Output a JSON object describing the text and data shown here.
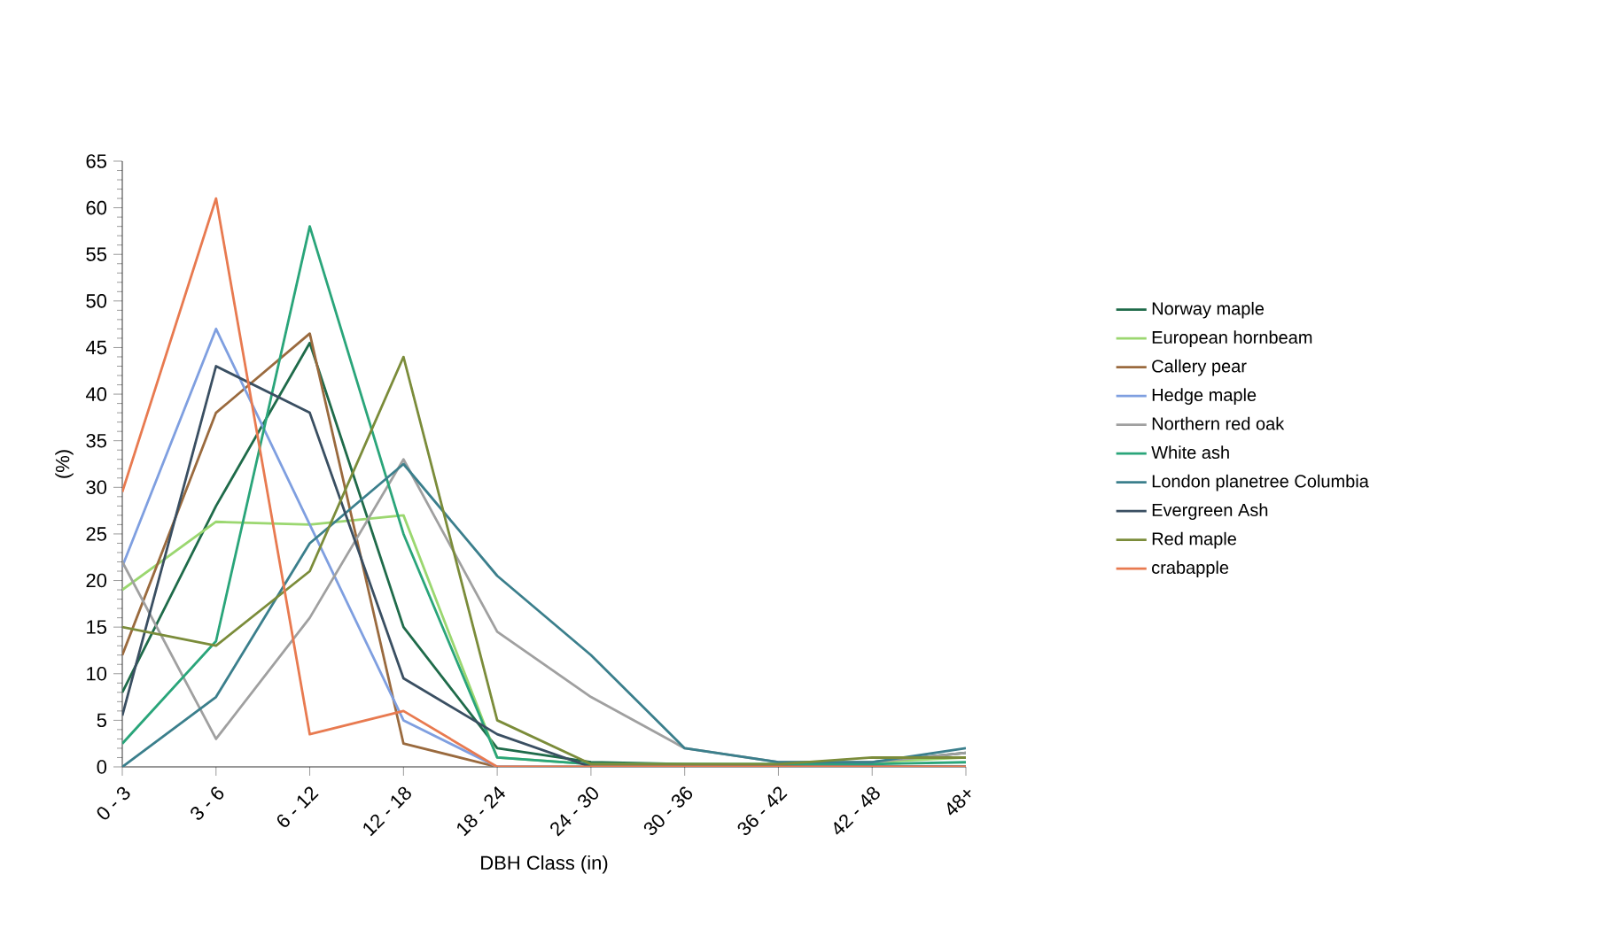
{
  "chart_data": {
    "type": "line",
    "xlabel": "DBH Class (in)",
    "ylabel": "(%)",
    "categories": [
      "0 - 3",
      "3 - 6",
      "6 - 12",
      "12 - 18",
      "18 - 24",
      "24 - 30",
      "30 - 36",
      "36 - 42",
      "42 - 48",
      "48+"
    ],
    "ylim": [
      0,
      65
    ],
    "yticks": [
      0,
      5,
      10,
      15,
      20,
      25,
      30,
      35,
      40,
      45,
      50,
      55,
      60,
      65
    ],
    "grid": false,
    "legend": "right",
    "marker": "none",
    "line_style": "solid",
    "series": [
      {
        "name": "Norway maple",
        "color": "#1f6b4a",
        "values": [
          8,
          28,
          45.5,
          15,
          2,
          0.5,
          0.3,
          0.2,
          0.5,
          1.5
        ]
      },
      {
        "name": "European hornbeam",
        "color": "#9bd770",
        "values": [
          19,
          26.3,
          26,
          27,
          1,
          0.3,
          0.3,
          0.3,
          0.5,
          1
        ]
      },
      {
        "name": "Callery pear",
        "color": "#9a6a3e",
        "values": [
          12,
          38,
          46.5,
          2.5,
          0,
          0,
          0,
          0,
          0,
          0
        ]
      },
      {
        "name": "Hedge maple",
        "color": "#7f9fe0",
        "values": [
          21.5,
          47,
          26,
          5,
          0,
          0,
          0,
          0,
          0,
          0
        ]
      },
      {
        "name": "Northern red oak",
        "color": "#a0a0a0",
        "values": [
          22,
          3,
          16,
          33,
          14.5,
          7.5,
          2,
          0.5,
          0.5,
          1.5
        ]
      },
      {
        "name": "White ash",
        "color": "#2aa57a",
        "values": [
          2.5,
          13.5,
          58,
          25,
          1,
          0.3,
          0.3,
          0.3,
          0.3,
          0.5
        ]
      },
      {
        "name": "London planetree Columbia",
        "color": "#3b7f8c",
        "values": [
          0,
          7.5,
          24,
          32.5,
          20.5,
          12,
          2,
          0.5,
          0.5,
          2
        ]
      },
      {
        "name": "Evergreen Ash",
        "color": "#3a4f62",
        "values": [
          5.5,
          43,
          38,
          9.5,
          3.5,
          0,
          0,
          0,
          0,
          0
        ]
      },
      {
        "name": "Red maple",
        "color": "#7b8c3a",
        "values": [
          15,
          13,
          21,
          44,
          5,
          0.3,
          0.3,
          0.3,
          1,
          1
        ]
      },
      {
        "name": "crabapple",
        "color": "#e87a50",
        "values": [
          29.5,
          61,
          3.5,
          6,
          0,
          0,
          0,
          0,
          0,
          0
        ]
      }
    ]
  }
}
